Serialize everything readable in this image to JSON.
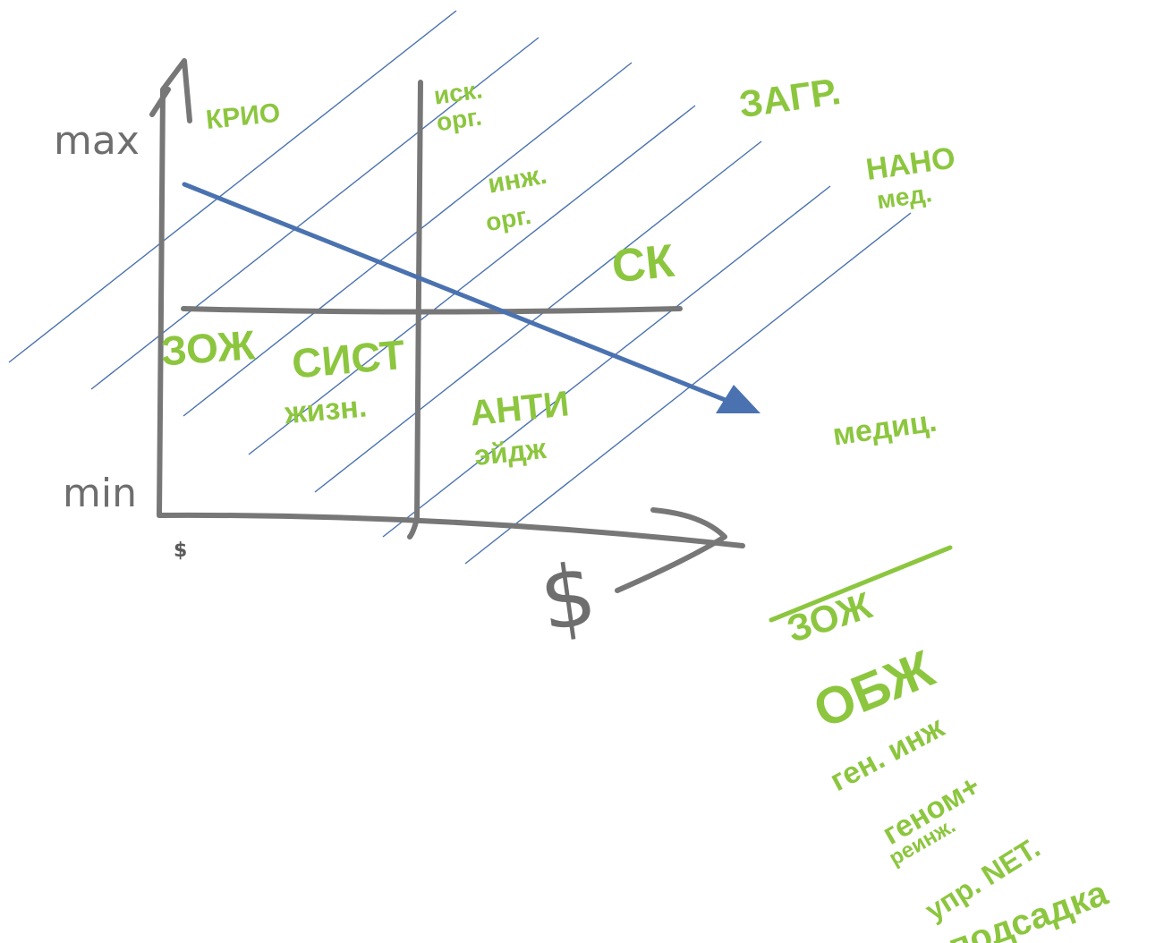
{
  "colors": {
    "axis": "#777777",
    "handwriting": "#8cc63f",
    "hatch": "#4a72b0",
    "arrow": "#4a72b0",
    "background": "#ffffff"
  },
  "axes": {
    "y_max_label": "max",
    "y_min_label": "min",
    "x_origin_label": "$",
    "x_axis_label": "$"
  },
  "quadrants": {
    "top_left": {
      "line1": "КРИО"
    },
    "top_right": {
      "item1_line1": "иск.",
      "item1_line2": "орг.",
      "item2_line1": "инж.",
      "item2_line2": "орг.",
      "item3": "СК"
    },
    "bottom_left": {
      "item1": "ЗОЖ",
      "item2_line1": "СИСТ",
      "item2_line2": "жизн."
    },
    "bottom_right": {
      "line1": "АНТИ",
      "line2": "эйдж"
    }
  },
  "outside": {
    "item1": "ЗАГР.",
    "item2_line1": "НАНО",
    "item2_line2": "мед.",
    "item3": "медиц."
  },
  "list": {
    "struck_item": "ЗОЖ",
    "items": [
      "ОБЖ",
      "ген. инж",
      "геном+",
      "реинж.",
      "упр. NET.",
      "подсадка"
    ]
  }
}
